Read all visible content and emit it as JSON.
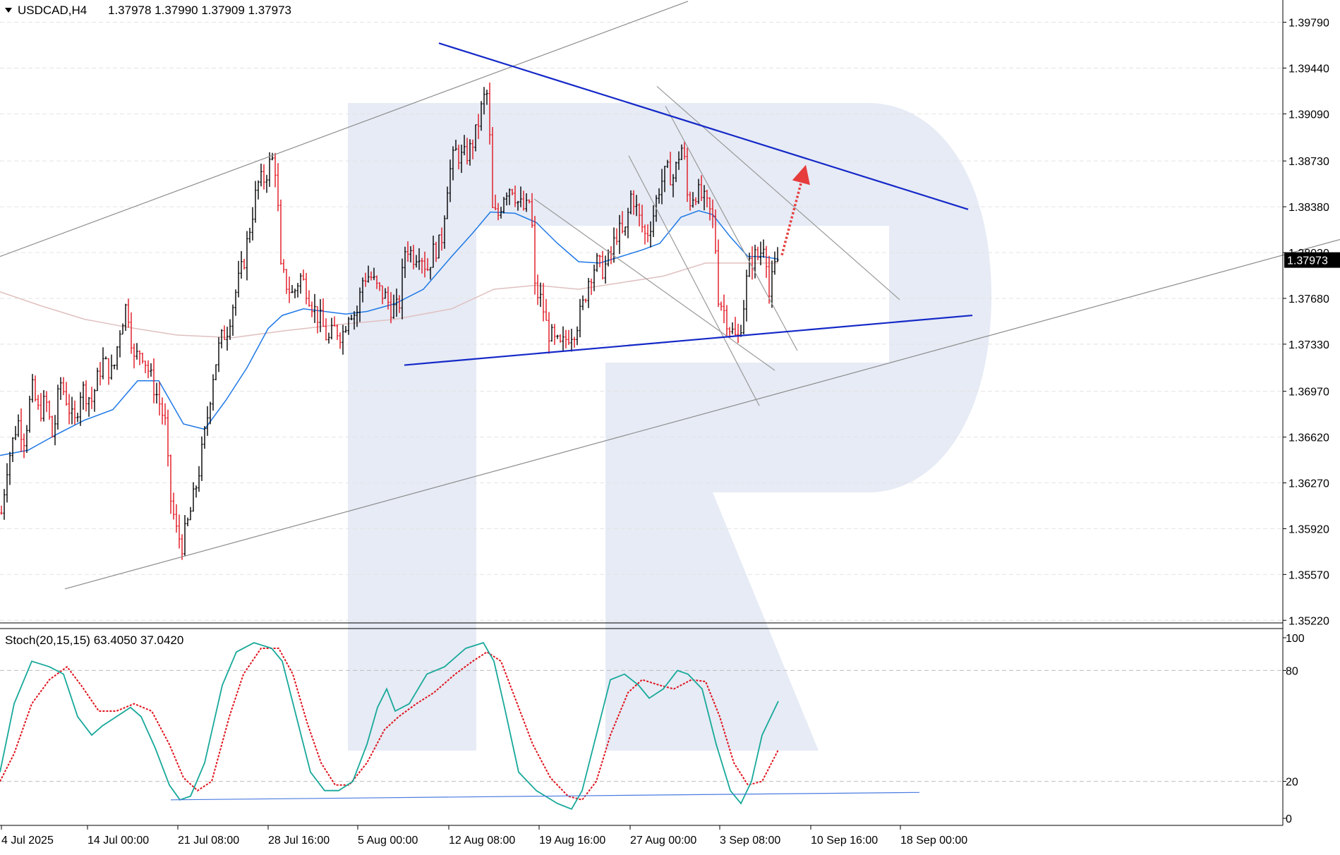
{
  "header": {
    "symbol_label": "USDCAD,H4",
    "ohlc": "1.37978 1.37990 1.37909 1.37973"
  },
  "current_price_label": "1.37973",
  "stoch_header": "Stoch(20,15,15) 63.4050 37.0420",
  "colors": {
    "bull": "#000000",
    "bear": "#e0141e",
    "ma_fast": "#1e78e6",
    "ma_slow": "#e0c0c0",
    "trend_blue": "#1428c8",
    "stoch_main": "#17a89a",
    "stoch_signal": "#e0141e",
    "arrow": "#e63c3c",
    "watermark": "#e6ebf5"
  },
  "chart_data": [
    {
      "type": "candlestick",
      "title": "",
      "symbol": "USDCAD",
      "timeframe": "H4",
      "ylim": [
        1.352,
        1.3996
      ],
      "y_ticks": [
        "1.39790",
        "1.39440",
        "1.39090",
        "1.38730",
        "1.38380",
        "1.38030",
        "1.37680",
        "1.37330",
        "1.36970",
        "1.36620",
        "1.36270",
        "1.35920",
        "1.35570",
        "1.35220"
      ],
      "x_ticks": [
        "4 Jul 2025",
        "14 Jul 00:00",
        "21 Jul 08:00",
        "28 Jul 16:00",
        "5 Aug 00:00",
        "12 Aug 08:00",
        "19 Aug 16:00",
        "27 Aug 00:00",
        "3 Sep 08:00",
        "10 Sep 16:00",
        "18 Sep 00:00"
      ],
      "current_price": 1.37973,
      "price_path": [
        [
          0,
          1.3595
        ],
        [
          10,
          1.364
        ],
        [
          25,
          1.3675
        ],
        [
          35,
          1.366
        ],
        [
          45,
          1.37
        ],
        [
          55,
          1.368
        ],
        [
          65,
          1.369
        ],
        [
          75,
          1.366
        ],
        [
          85,
          1.3705
        ],
        [
          95,
          1.369
        ],
        [
          105,
          1.367
        ],
        [
          115,
          1.37
        ],
        [
          130,
          1.369
        ],
        [
          145,
          1.372
        ],
        [
          160,
          1.371
        ],
        [
          170,
          1.3745
        ],
        [
          180,
          1.3765
        ],
        [
          190,
          1.372
        ],
        [
          200,
          1.373
        ],
        [
          215,
          1.3705
        ],
        [
          225,
          1.369
        ],
        [
          235,
          1.367
        ],
        [
          240,
          1.362
        ],
        [
          250,
          1.359
        ],
        [
          258,
          1.358
        ],
        [
          268,
          1.36
        ],
        [
          280,
          1.363
        ],
        [
          292,
          1.367
        ],
        [
          302,
          1.371
        ],
        [
          312,
          1.3735
        ],
        [
          322,
          1.3745
        ],
        [
          335,
          1.3775
        ],
        [
          345,
          1.3795
        ],
        [
          355,
          1.3825
        ],
        [
          365,
          1.3855
        ],
        [
          375,
          1.386
        ],
        [
          385,
          1.3875
        ],
        [
          392,
          1.3865
        ],
        [
          397,
          1.379
        ],
        [
          405,
          1.378
        ],
        [
          415,
          1.377
        ],
        [
          425,
          1.3785
        ],
        [
          435,
          1.3775
        ],
        [
          445,
          1.376
        ],
        [
          455,
          1.375
        ],
        [
          465,
          1.3735
        ],
        [
          475,
          1.3745
        ],
        [
          485,
          1.374
        ],
        [
          495,
          1.376
        ],
        [
          505,
          1.3755
        ],
        [
          515,
          1.3785
        ],
        [
          525,
          1.3785
        ],
        [
          535,
          1.3775
        ],
        [
          545,
          1.377
        ],
        [
          555,
          1.376
        ],
        [
          565,
          1.376
        ],
        [
          575,
          1.381
        ],
        [
          585,
          1.38
        ],
        [
          595,
          1.3805
        ],
        [
          605,
          1.379
        ],
        [
          615,
          1.3805
        ],
        [
          625,
          1.381
        ],
        [
          635,
          1.386
        ],
        [
          645,
          1.388
        ],
        [
          655,
          1.3875
        ],
        [
          665,
          1.388
        ],
        [
          675,
          1.3895
        ],
        [
          685,
          1.392
        ],
        [
          692,
          1.3925
        ],
        [
          697,
          1.3835
        ],
        [
          705,
          1.383
        ],
        [
          715,
          1.385
        ],
        [
          725,
          1.3855
        ],
        [
          735,
          1.384
        ],
        [
          745,
          1.3835
        ],
        [
          752,
          1.3845
        ],
        [
          758,
          1.3775
        ],
        [
          768,
          1.3765
        ],
        [
          775,
          1.3745
        ],
        [
          785,
          1.3735
        ],
        [
          795,
          1.373
        ],
        [
          805,
          1.374
        ],
        [
          815,
          1.3745
        ],
        [
          825,
          1.376
        ],
        [
          835,
          1.3785
        ],
        [
          845,
          1.3795
        ],
        [
          855,
          1.379
        ],
        [
          865,
          1.38
        ],
        [
          875,
          1.382
        ],
        [
          885,
          1.3815
        ],
        [
          895,
          1.385
        ],
        [
          905,
          1.383
        ],
        [
          915,
          1.3815
        ],
        [
          925,
          1.383
        ],
        [
          935,
          1.3855
        ],
        [
          945,
          1.3865
        ],
        [
          955,
          1.386
        ],
        [
          963,
          1.388
        ],
        [
          968,
          1.3885
        ],
        [
          975,
          1.384
        ],
        [
          985,
          1.385
        ],
        [
          995,
          1.3845
        ],
        [
          1005,
          1.3835
        ],
        [
          1012,
          1.3825
        ],
        [
          1018,
          1.377
        ],
        [
          1025,
          1.376
        ],
        [
          1035,
          1.3745
        ],
        [
          1045,
          1.3735
        ],
        [
          1052,
          1.3755
        ],
        [
          1060,
          1.379
        ],
        [
          1068,
          1.38
        ],
        [
          1076,
          1.38
        ],
        [
          1084,
          1.3815
        ],
        [
          1090,
          1.377
        ],
        [
          1097,
          1.379
        ],
        [
          1103,
          1.37973
        ]
      ],
      "ma_fast_path": [
        [
          0,
          1.3648
        ],
        [
          40,
          1.3652
        ],
        [
          80,
          1.3664
        ],
        [
          120,
          1.3675
        ],
        [
          160,
          1.3683
        ],
        [
          195,
          1.3705
        ],
        [
          225,
          1.3705
        ],
        [
          260,
          1.3672
        ],
        [
          290,
          1.3668
        ],
        [
          320,
          1.369
        ],
        [
          350,
          1.3715
        ],
        [
          380,
          1.3745
        ],
        [
          400,
          1.3755
        ],
        [
          430,
          1.376
        ],
        [
          460,
          1.3758
        ],
        [
          490,
          1.3756
        ],
        [
          520,
          1.3758
        ],
        [
          560,
          1.3764
        ],
        [
          600,
          1.3775
        ],
        [
          640,
          1.38
        ],
        [
          670,
          1.3818
        ],
        [
          695,
          1.3834
        ],
        [
          730,
          1.3833
        ],
        [
          760,
          1.3826
        ],
        [
          790,
          1.381
        ],
        [
          820,
          1.3796
        ],
        [
          850,
          1.3795
        ],
        [
          880,
          1.38
        ],
        [
          910,
          1.3805
        ],
        [
          935,
          1.381
        ],
        [
          965,
          1.383
        ],
        [
          990,
          1.3835
        ],
        [
          1010,
          1.3832
        ],
        [
          1035,
          1.3815
        ],
        [
          1060,
          1.38
        ],
        [
          1080,
          1.38
        ],
        [
          1103,
          1.3798
        ]
      ],
      "ma_slow_path": [
        [
          0,
          1.3773
        ],
        [
          60,
          1.3762
        ],
        [
          120,
          1.3752
        ],
        [
          180,
          1.3746
        ],
        [
          250,
          1.374
        ],
        [
          330,
          1.3738
        ],
        [
          400,
          1.3743
        ],
        [
          480,
          1.3748
        ],
        [
          560,
          1.3752
        ],
        [
          640,
          1.376
        ],
        [
          700,
          1.3775
        ],
        [
          760,
          1.3778
        ],
        [
          820,
          1.3775
        ],
        [
          880,
          1.378
        ],
        [
          940,
          1.3785
        ],
        [
          1000,
          1.3795
        ],
        [
          1060,
          1.3795
        ],
        [
          1103,
          1.3795
        ]
      ],
      "annotations": {
        "trendlines_blue": [
          [
            [
              622,
              1.3963
            ],
            [
              1372,
              1.3836
            ]
          ],
          [
            [
              573,
              1.3717
            ],
            [
              1378,
              1.3755
            ]
          ]
        ],
        "channel_gray": [
          [
            [
              0,
              1.38
            ],
            [
              975,
              1.3995
            ]
          ],
          [
            [
              92,
              1.3546
            ],
            [
              1899,
              1.3813
            ]
          ]
        ],
        "fan_gray": [
          [
            [
              931,
              1.393
            ],
            [
              1275,
              1.3767
            ]
          ],
          [
            [
              757,
              1.3844
            ],
            [
              1098,
              1.3713
            ]
          ],
          [
            [
              943,
              1.3915
            ],
            [
              1130,
              1.3728
            ]
          ],
          [
            [
              891,
              1.3877
            ],
            [
              1076,
              1.3686
            ]
          ]
        ],
        "projection_arrow": [
          [
            1108,
            1.3801
          ],
          [
            1142,
            1.387
          ]
        ]
      }
    },
    {
      "type": "line",
      "title": "Stoch(20,15,15) 63.4050 37.0420",
      "ylim": [
        0,
        100
      ],
      "y_ticks": [
        "100",
        "80",
        "20",
        "0"
      ],
      "levels": [
        80,
        20
      ],
      "main_value": 63.405,
      "signal_value": 37.042,
      "main_path": [
        [
          0,
          25
        ],
        [
          20,
          62
        ],
        [
          45,
          85
        ],
        [
          70,
          82
        ],
        [
          90,
          78
        ],
        [
          110,
          55
        ],
        [
          130,
          45
        ],
        [
          145,
          50
        ],
        [
          165,
          55
        ],
        [
          185,
          60
        ],
        [
          200,
          55
        ],
        [
          220,
          38
        ],
        [
          240,
          18
        ],
        [
          255,
          10
        ],
        [
          270,
          12
        ],
        [
          290,
          30
        ],
        [
          315,
          72
        ],
        [
          335,
          90
        ],
        [
          360,
          95
        ],
        [
          385,
          92
        ],
        [
          400,
          85
        ],
        [
          420,
          55
        ],
        [
          440,
          25
        ],
        [
          460,
          15
        ],
        [
          480,
          15
        ],
        [
          500,
          20
        ],
        [
          520,
          40
        ],
        [
          535,
          60
        ],
        [
          548,
          70
        ],
        [
          560,
          58
        ],
        [
          580,
          62
        ],
        [
          605,
          78
        ],
        [
          630,
          82
        ],
        [
          660,
          92
        ],
        [
          685,
          95
        ],
        [
          700,
          85
        ],
        [
          715,
          60
        ],
        [
          735,
          25
        ],
        [
          760,
          15
        ],
        [
          790,
          8
        ],
        [
          810,
          5
        ],
        [
          825,
          15
        ],
        [
          845,
          45
        ],
        [
          865,
          75
        ],
        [
          885,
          78
        ],
        [
          905,
          72
        ],
        [
          920,
          65
        ],
        [
          940,
          70
        ],
        [
          960,
          80
        ],
        [
          975,
          78
        ],
        [
          995,
          70
        ],
        [
          1015,
          40
        ],
        [
          1035,
          15
        ],
        [
          1050,
          8
        ],
        [
          1065,
          20
        ],
        [
          1080,
          45
        ],
        [
          1103,
          63.405
        ]
      ],
      "signal_path": [
        [
          0,
          20
        ],
        [
          20,
          35
        ],
        [
          45,
          62
        ],
        [
          70,
          75
        ],
        [
          95,
          82
        ],
        [
          115,
          72
        ],
        [
          140,
          58
        ],
        [
          165,
          58
        ],
        [
          190,
          62
        ],
        [
          215,
          58
        ],
        [
          240,
          40
        ],
        [
          260,
          22
        ],
        [
          280,
          15
        ],
        [
          300,
          20
        ],
        [
          325,
          55
        ],
        [
          345,
          78
        ],
        [
          370,
          92
        ],
        [
          395,
          92
        ],
        [
          415,
          78
        ],
        [
          435,
          52
        ],
        [
          455,
          30
        ],
        [
          475,
          18
        ],
        [
          495,
          18
        ],
        [
          520,
          30
        ],
        [
          545,
          48
        ],
        [
          565,
          55
        ],
        [
          590,
          62
        ],
        [
          615,
          68
        ],
        [
          645,
          78
        ],
        [
          670,
          85
        ],
        [
          690,
          90
        ],
        [
          710,
          85
        ],
        [
          730,
          65
        ],
        [
          755,
          40
        ],
        [
          780,
          22
        ],
        [
          805,
          12
        ],
        [
          825,
          10
        ],
        [
          845,
          20
        ],
        [
          865,
          45
        ],
        [
          890,
          68
        ],
        [
          910,
          75
        ],
        [
          935,
          72
        ],
        [
          955,
          70
        ],
        [
          980,
          75
        ],
        [
          1000,
          74
        ],
        [
          1020,
          55
        ],
        [
          1040,
          30
        ],
        [
          1060,
          18
        ],
        [
          1080,
          20
        ],
        [
          1103,
          37.042
        ]
      ],
      "divergence_line": [
        [
          242,
          10
        ],
        [
          1303,
          14
        ]
      ]
    }
  ]
}
